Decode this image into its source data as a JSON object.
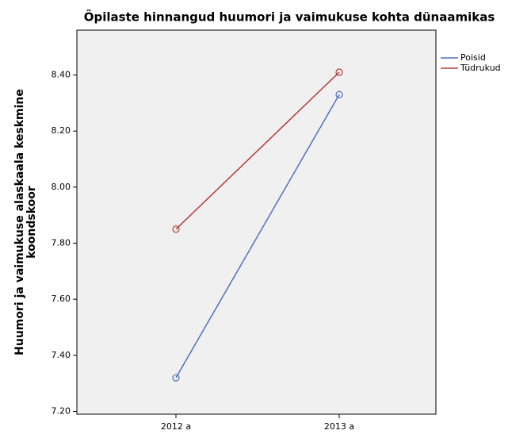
{
  "chart_data": {
    "type": "line",
    "title": "Õpilaste hinnangud huumori ja vaimukuse kohta dünaamikas",
    "ylabel": [
      "Huumori ja vaimukuse alaskaala keskmine",
      "koondskoor"
    ],
    "categories": [
      "2012 a",
      "2013 a"
    ],
    "series": [
      {
        "name": "Poisid",
        "color": "#5170c0",
        "values": [
          7.32,
          8.33
        ]
      },
      {
        "name": "Tüdrukud",
        "color": "#b33a3a",
        "values": [
          7.85,
          8.41
        ]
      }
    ],
    "ylim": [
      7.19,
      8.56
    ],
    "yticks": [
      {
        "value": 7.2,
        "label": "7.20"
      },
      {
        "value": 7.4,
        "label": "7.40"
      },
      {
        "value": 7.6,
        "label": "7.60"
      },
      {
        "value": 7.8,
        "label": "7.80"
      },
      {
        "value": 8.0,
        "label": "8.00"
      },
      {
        "value": 8.2,
        "label": "8.20"
      },
      {
        "value": 8.4,
        "label": "8.40"
      }
    ],
    "legend": "right",
    "grid": false
  }
}
